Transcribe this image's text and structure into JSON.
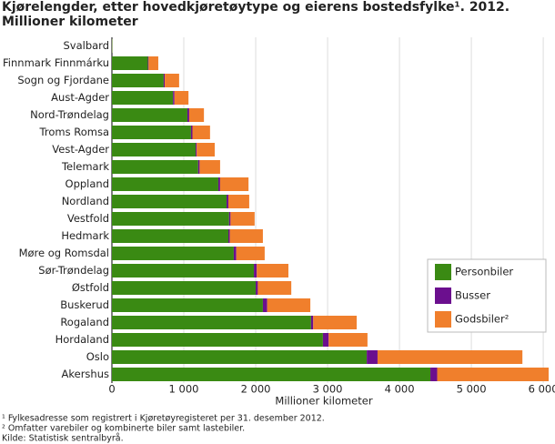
{
  "chart_data": {
    "type": "stacked-bar-horizontal",
    "title": "Kjørelengder, etter hovedkjøretøytype og eierens bostedsfylke¹. 2012.",
    "subtitle": "Millioner kilometer",
    "categories": [
      "Svalbard",
      "Finnmark Finnmárku",
      "Sogn og Fjordane",
      "Aust-Agder",
      "Nord-Trøndelag",
      "Troms Romsa",
      "Vest-Agder",
      "Telemark",
      "Oppland",
      "Nordland",
      "Vestfold",
      "Hedmark",
      "Møre og Romsdal",
      "Sør-Trøndelag",
      "Østfold",
      "Buskerud",
      "Rogaland",
      "Hordaland",
      "Oslo",
      "Akershus"
    ],
    "series": [
      {
        "name": "Personbiler",
        "color": "#3a8a13",
        "values": [
          5,
          500,
          720,
          850,
          1050,
          1100,
          1165,
          1200,
          1480,
          1595,
          1630,
          1620,
          1695,
          1975,
          2000,
          2100,
          2770,
          2935,
          3545,
          4430
        ]
      },
      {
        "name": "Busser",
        "color": "#6b0f8e",
        "values": [
          0,
          10,
          15,
          20,
          25,
          20,
          15,
          20,
          25,
          25,
          20,
          20,
          35,
          40,
          30,
          60,
          30,
          80,
          150,
          95
        ]
      },
      {
        "name": "Godsbiler²",
        "color": "#f07f2c",
        "values": [
          1,
          135,
          200,
          195,
          205,
          245,
          250,
          285,
          395,
          290,
          335,
          460,
          395,
          440,
          465,
          600,
          605,
          540,
          2015,
          1550
        ]
      }
    ],
    "x_label": "Millioner kilometer",
    "xlim": [
      0,
      6100
    ],
    "xticks": [
      0,
      {
        "value": 1000,
        "label": "1 000"
      },
      {
        "value": 2000,
        "label": "2 000"
      },
      {
        "value": 3000,
        "label": "3 000"
      },
      {
        "value": 4000,
        "label": "4 000"
      },
      {
        "value": 5000,
        "label": "5 000"
      },
      {
        "value": 6000,
        "label": "6 000"
      }
    ],
    "grid": true,
    "legend_position": "lower right",
    "notes": [
      "¹ Fylkesadresse som registrert i Kjøretøyregisteret per 31. desember 2012.",
      "² Omfatter varebiler og kombinerte biler samt lastebiler.",
      "Kilde: Statistisk sentralbyrå."
    ]
  }
}
